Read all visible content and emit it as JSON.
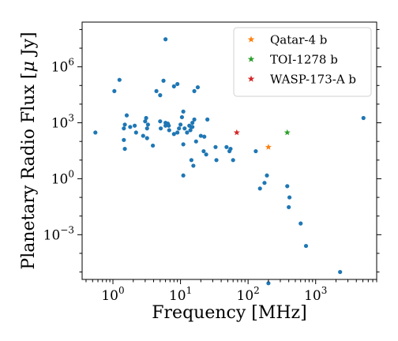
{
  "chart_data": {
    "type": "scatter",
    "xlabel": "Frequency [MHz]",
    "ylabel": "Planetary Radio Flux [$\\mu$ Jy]",
    "ylabel_parts": [
      "Planetary Radio Flux [",
      "μ",
      " Jy]"
    ],
    "xscale": "log",
    "yscale": "log",
    "xlim": [
      0.35,
      8000
    ],
    "ylim": [
      4e-06,
      250000000
    ],
    "x_ticks": [
      {
        "value": 1,
        "mantissa": "10",
        "exponent": "0"
      },
      {
        "value": 10,
        "mantissa": "10",
        "exponent": "1"
      },
      {
        "value": 100,
        "mantissa": "10",
        "exponent": "2"
      },
      {
        "value": 1000,
        "mantissa": "10",
        "exponent": "3"
      }
    ],
    "y_ticks": [
      {
        "value": 0.001,
        "mantissa": "10",
        "exponent": "−3"
      },
      {
        "value": 1,
        "mantissa": "10",
        "exponent": "0"
      },
      {
        "value": 1000,
        "mantissa": "10",
        "exponent": "3"
      },
      {
        "value": 1000000,
        "mantissa": "10",
        "exponent": "6"
      }
    ],
    "grid": false,
    "legend_position": "top-right",
    "series": [
      {
        "name": "",
        "marker": "circle",
        "color": "#1f77b4",
        "points": [
          [
            0.55,
            300
          ],
          [
            1.05,
            50000
          ],
          [
            1.25,
            200000
          ],
          [
            1.45,
            500
          ],
          [
            1.5,
            800
          ],
          [
            1.5,
            40
          ],
          [
            1.45,
            120
          ],
          [
            1.6,
            2500
          ],
          [
            1.8,
            600
          ],
          [
            2.1,
            700
          ],
          [
            2.2,
            300
          ],
          [
            2.8,
            200
          ],
          [
            3.0,
            1200
          ],
          [
            3.1,
            1800
          ],
          [
            3.2,
            500
          ],
          [
            3.2,
            150
          ],
          [
            3.3,
            800
          ],
          [
            3.9,
            60
          ],
          [
            4.4,
            50000
          ],
          [
            5.0,
            30000
          ],
          [
            5.0,
            1200
          ],
          [
            5.1,
            500
          ],
          [
            5.6,
            180000
          ],
          [
            6.0,
            700
          ],
          [
            6.0,
            1000
          ],
          [
            6.0,
            30000000
          ],
          [
            6.5,
            900
          ],
          [
            6.7,
            700
          ],
          [
            6.8,
            400
          ],
          [
            8.0,
            90000
          ],
          [
            8.0,
            250
          ],
          [
            9.0,
            120000
          ],
          [
            9.0,
            300
          ],
          [
            9.5,
            500
          ],
          [
            10.0,
            800
          ],
          [
            10.5,
            2000
          ],
          [
            11.0,
            4000
          ],
          [
            11.0,
            70
          ],
          [
            11.0,
            1.5
          ],
          [
            11.5,
            500
          ],
          [
            12.5,
            300
          ],
          [
            13.5,
            700
          ],
          [
            14.0,
            400
          ],
          [
            14.5,
            600
          ],
          [
            14.5,
            10
          ],
          [
            15.0,
            1000
          ],
          [
            15.0,
            600
          ],
          [
            15.5,
            5
          ],
          [
            16.0,
            1500
          ],
          [
            16.0,
            50000
          ],
          [
            17.0,
            100
          ],
          [
            18.0,
            80000
          ],
          [
            20.0,
            200
          ],
          [
            22.0,
            30
          ],
          [
            22.5,
            180
          ],
          [
            24.0,
            20
          ],
          [
            25.0,
            1500
          ],
          [
            33.0,
            50
          ],
          [
            34.0,
            10
          ],
          [
            48.0,
            50
          ],
          [
            53.0,
            30
          ],
          [
            55.0,
            40
          ],
          [
            60.0,
            10
          ],
          [
            130.0,
            30
          ],
          [
            150.0,
            0.3
          ],
          [
            175.0,
            0.6
          ],
          [
            190.0,
            1.5
          ],
          [
            200.0,
            2.5e-06
          ],
          [
            380.0,
            0.4
          ],
          [
            400.0,
            0.03
          ],
          [
            410.0,
            0.1
          ],
          [
            600.0,
            0.004
          ],
          [
            720.0,
            0.00025
          ],
          [
            2300.0,
            1e-05
          ],
          [
            5100.0,
            1800
          ]
        ]
      },
      {
        "name": "Qatar-4 b",
        "marker": "star",
        "color": "#ff7f0e",
        "points": [
          [
            200.0,
            50
          ]
        ]
      },
      {
        "name": "TOI-1278 b",
        "marker": "star",
        "color": "#2ca02c",
        "points": [
          [
            380.0,
            300
          ]
        ]
      },
      {
        "name": "WASP-173-A b",
        "marker": "star",
        "color": "#d62728",
        "points": [
          [
            68.0,
            300
          ]
        ]
      }
    ]
  }
}
